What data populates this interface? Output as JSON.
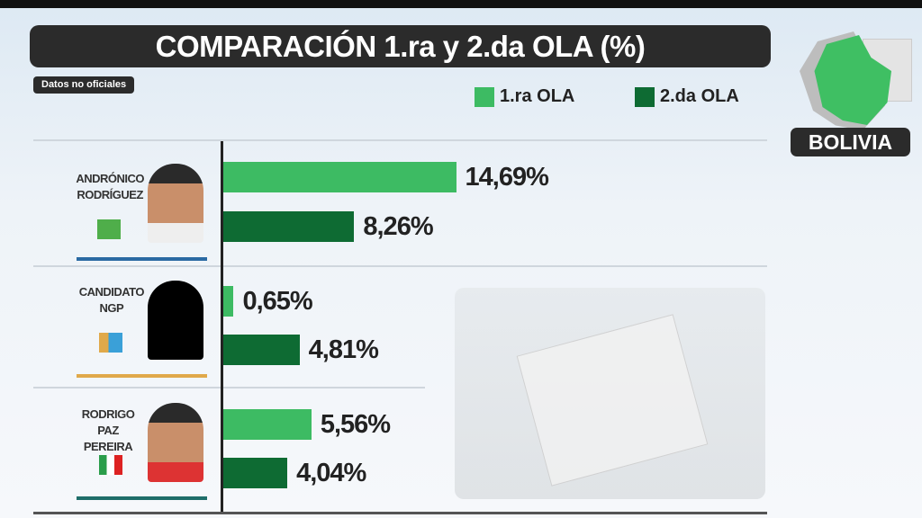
{
  "header": {
    "title": "COMPARACIÓN 1.ra y 2.da OLA (%)",
    "subtitle": "Datos no oficiales",
    "region": "BOLIVIA"
  },
  "chart_data": {
    "type": "bar",
    "title": "COMPARACIÓN 1.ra y 2.da OLA (%)",
    "categories": [
      "ANDRÓNICO RODRÍGUEZ",
      "CANDIDATO NGP",
      "RODRIGO PAZ PEREIRA"
    ],
    "series": [
      {
        "name": "1.ra OLA",
        "color": "#3dbb63",
        "values": [
          14.69,
          0.65,
          5.56
        ],
        "labels": [
          "14,69%",
          "0,65%",
          "5,56%"
        ]
      },
      {
        "name": "2.da OLA",
        "color": "#0e6b33",
        "values": [
          8.26,
          4.81,
          4.04
        ],
        "labels": [
          "8,26%",
          "4,81%",
          "4,04%"
        ]
      }
    ],
    "orientation": "horizontal",
    "xlim": [
      0,
      30
    ],
    "legend": "top-right"
  },
  "candidates": [
    {
      "line1": "ANDRÓNICO",
      "line2": "RODRÍGUEZ",
      "accent": "#2a6aa3"
    },
    {
      "line1": "CANDIDATO",
      "line2": "NGP",
      "accent": "#e0a94a"
    },
    {
      "line1": "RODRIGO",
      "line2": "PAZ PEREIRA",
      "accent": "#1f6e6a"
    }
  ]
}
